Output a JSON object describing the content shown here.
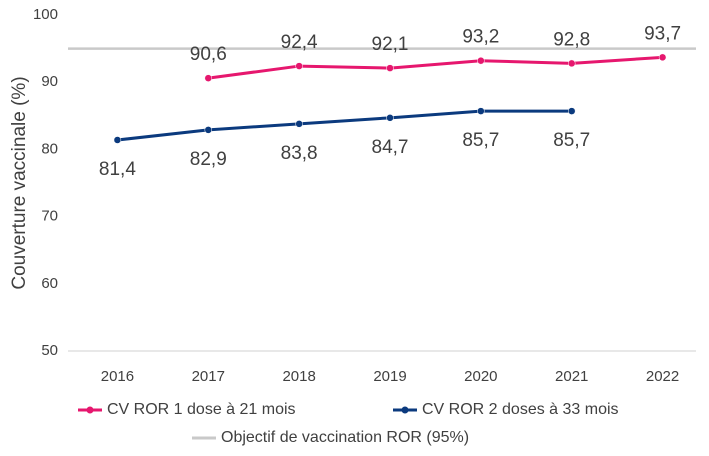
{
  "chart_data": {
    "type": "line",
    "y_label": "Couverture vaccinale (%)",
    "categories": [
      "2016",
      "2017",
      "2018",
      "2019",
      "2020",
      "2021",
      "2022"
    ],
    "series": [
      {
        "name": "CV ROR 1 dose à 21 mois",
        "color": "#e6176e",
        "values": [
          null,
          90.6,
          92.4,
          92.1,
          93.2,
          92.8,
          93.7
        ],
        "value_labels": [
          null,
          "90,6",
          "92,4",
          "92,1",
          "93,2",
          "92,8",
          "93,7"
        ]
      },
      {
        "name": "CV ROR 2 doses à 33 mois",
        "color": "#0b3a7e",
        "values": [
          81.4,
          82.9,
          83.8,
          84.7,
          85.7,
          85.7,
          null
        ],
        "value_labels": [
          "81,4",
          "82,9",
          "83,8",
          "84,7",
          "85,7",
          "85,7",
          null
        ]
      }
    ],
    "reference": {
      "name": "Objectif de vaccination ROR (95%)",
      "value": 95,
      "color": "#c9c9c9"
    },
    "ylim": [
      50,
      100
    ],
    "yticks": [
      50,
      60,
      70,
      80,
      90,
      100
    ]
  }
}
